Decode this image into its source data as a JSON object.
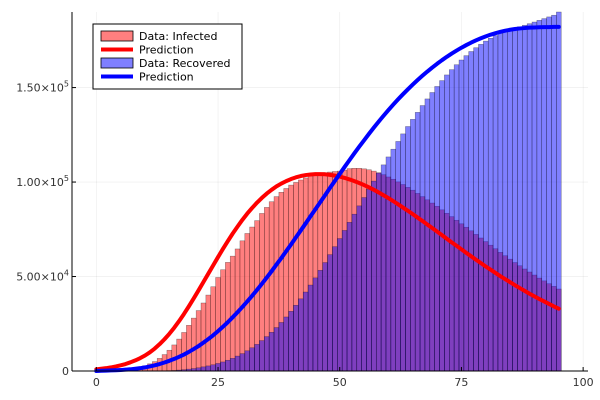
{
  "chart_data": {
    "type": "bar",
    "grid": true,
    "legend_position": "top-left",
    "xlim": [
      -5,
      101
    ],
    "ylim": [
      0,
      190000
    ],
    "x_ticks": [
      {
        "value": 0,
        "label": "0"
      },
      {
        "value": 25,
        "label": "25"
      },
      {
        "value": 50,
        "label": "50"
      },
      {
        "value": 75,
        "label": "75"
      },
      {
        "value": 100,
        "label": "100"
      }
    ],
    "y_ticks": [
      {
        "value": 0,
        "label": "0",
        "sup": ""
      },
      {
        "value": 50000,
        "label": "5.00×10",
        "sup": "4"
      },
      {
        "value": 100000,
        "label": "1.00×10",
        "sup": "5"
      },
      {
        "value": 150000,
        "label": "1.50×10",
        "sup": "5"
      }
    ],
    "x": [
      0,
      1,
      2,
      3,
      4,
      5,
      6,
      7,
      8,
      9,
      10,
      11,
      12,
      13,
      14,
      15,
      16,
      17,
      18,
      19,
      20,
      21,
      22,
      23,
      24,
      25,
      26,
      27,
      28,
      29,
      30,
      31,
      32,
      33,
      34,
      35,
      36,
      37,
      38,
      39,
      40,
      41,
      42,
      43,
      44,
      45,
      46,
      47,
      48,
      49,
      50,
      51,
      52,
      53,
      54,
      55,
      56,
      57,
      58,
      59,
      60,
      61,
      62,
      63,
      64,
      65,
      66,
      67,
      68,
      69,
      70,
      71,
      72,
      73,
      74,
      75,
      76,
      77,
      78,
      79,
      80,
      81,
      82,
      83,
      84,
      85,
      86,
      87,
      88,
      89,
      90,
      91,
      92,
      93,
      94,
      95
    ],
    "series": [
      {
        "name": "Data: Infected",
        "kind": "bar",
        "color": "#ff0000",
        "opacity": 0.5,
        "values": [
          0,
          0,
          0,
          0,
          0,
          200,
          500,
          900,
          1400,
          2000,
          2800,
          3800,
          5000,
          6700,
          8700,
          11000,
          13800,
          16900,
          20400,
          24200,
          28000,
          32000,
          36000,
          40200,
          44600,
          49500,
          53600,
          57500,
          60800,
          64600,
          68900,
          72800,
          76200,
          79600,
          83400,
          86600,
          89600,
          92300,
          94600,
          96600,
          98400,
          99800,
          101100,
          102200,
          103200,
          103900,
          104500,
          105000,
          105300,
          105600,
          105800,
          106300,
          107100,
          107300,
          107300,
          107000,
          106500,
          105800,
          104900,
          103900,
          102700,
          101500,
          100100,
          98700,
          97200,
          95700,
          94000,
          92300,
          90600,
          88900,
          87200,
          85300,
          83500,
          81700,
          79800,
          77900,
          76100,
          74200,
          72300,
          70400,
          68500,
          66600,
          64700,
          62800,
          61000,
          59200,
          57400,
          55700,
          54000,
          52400,
          50800,
          49200,
          47700,
          46200,
          44800,
          43400
        ]
      },
      {
        "name": "Prediction",
        "kind": "line",
        "color": "#ff0000",
        "values": [
          900,
          1200,
          1500,
          1900,
          2400,
          3000,
          3700,
          4600,
          5600,
          6800,
          8200,
          9900,
          11900,
          14200,
          16800,
          19700,
          22900,
          26400,
          30200,
          34200,
          38400,
          42700,
          47100,
          51500,
          55900,
          60300,
          64600,
          68700,
          72700,
          76400,
          80000,
          83300,
          86300,
          89100,
          91600,
          93900,
          95900,
          97700,
          99200,
          100500,
          101600,
          102500,
          103200,
          103700,
          104000,
          104200,
          104200,
          104100,
          103800,
          103400,
          102900,
          102200,
          101400,
          100500,
          99500,
          98400,
          97200,
          95900,
          94500,
          93000,
          91500,
          89900,
          88200,
          86500,
          84800,
          83000,
          81200,
          79400,
          77500,
          75700,
          73800,
          71900,
          70000,
          68100,
          66300,
          64400,
          62500,
          60700,
          58900,
          57100,
          55300,
          53600,
          51900,
          50200,
          48600,
          47000,
          45400,
          43900,
          42400,
          40900,
          39500,
          38100,
          36800,
          35500,
          34200,
          33000
        ]
      },
      {
        "name": "Data: Recovered",
        "kind": "bar",
        "color": "#0000ff",
        "opacity": 0.5,
        "values": [
          0,
          0,
          0,
          0,
          0,
          0,
          0,
          0,
          0,
          0,
          0,
          0,
          0,
          0,
          100,
          200,
          300,
          500,
          700,
          1000,
          1300,
          1700,
          2200,
          2700,
          3300,
          4000,
          4800,
          5700,
          6700,
          7900,
          9200,
          10700,
          12300,
          14100,
          16100,
          18200,
          20500,
          23000,
          25700,
          28600,
          31600,
          34800,
          38200,
          41800,
          45500,
          49300,
          53300,
          57400,
          61600,
          65800,
          70100,
          74400,
          78700,
          83000,
          87400,
          91800,
          96200,
          100500,
          104800,
          109100,
          113300,
          117400,
          121500,
          125500,
          129400,
          133200,
          136900,
          140500,
          144000,
          147400,
          150600,
          153700,
          156700,
          159500,
          162100,
          164600,
          166900,
          169100,
          171100,
          172900,
          174600,
          176100,
          177500,
          178700,
          179800,
          180700,
          181500,
          182200,
          183000,
          183800,
          184700,
          185600,
          186500,
          187400,
          188300,
          190000
        ]
      },
      {
        "name": "Prediction",
        "kind": "line",
        "color": "#0000ff",
        "values": [
          0,
          100,
          200,
          300,
          400,
          500,
          700,
          900,
          1200,
          1500,
          1900,
          2400,
          3000,
          3700,
          4500,
          5400,
          6400,
          7500,
          8700,
          10100,
          11600,
          13200,
          15000,
          16900,
          18900,
          21100,
          23400,
          25800,
          28400,
          31100,
          33900,
          36800,
          39800,
          42900,
          46100,
          49400,
          52800,
          56300,
          59800,
          63400,
          67000,
          70700,
          74400,
          78100,
          81900,
          85600,
          89400,
          93100,
          96900,
          100600,
          104300,
          108000,
          111600,
          115200,
          118700,
          122100,
          125500,
          128800,
          132000,
          135100,
          138100,
          141000,
          143800,
          146500,
          149100,
          151600,
          154000,
          156300,
          158500,
          160600,
          162600,
          164500,
          166300,
          168000,
          169600,
          171100,
          172500,
          173800,
          175000,
          176100,
          177100,
          178000,
          178800,
          179500,
          180100,
          180600,
          181000,
          181300,
          181500,
          181700,
          181800,
          181900,
          182000,
          182000,
          182100,
          182100
        ]
      }
    ]
  }
}
